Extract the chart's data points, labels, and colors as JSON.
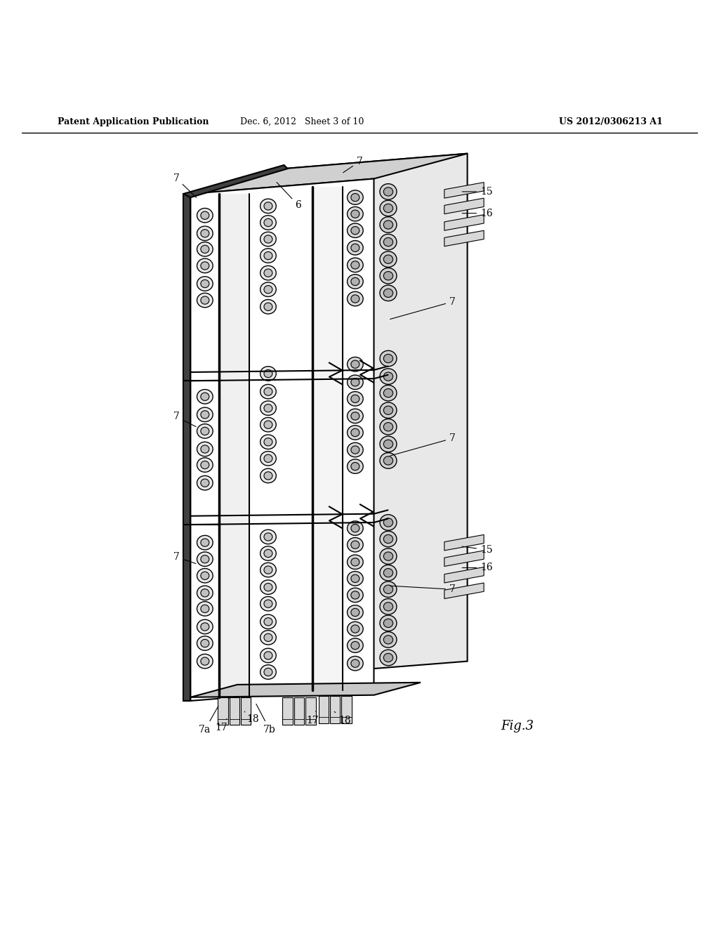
{
  "title_left": "Patent Application Publication",
  "title_mid": "Dec. 6, 2012   Sheet 3 of 10",
  "title_right": "US 2012/0306213 A1",
  "fig_label": "Fig.3",
  "bg_color": "#ffffff",
  "line_color": "#000000"
}
